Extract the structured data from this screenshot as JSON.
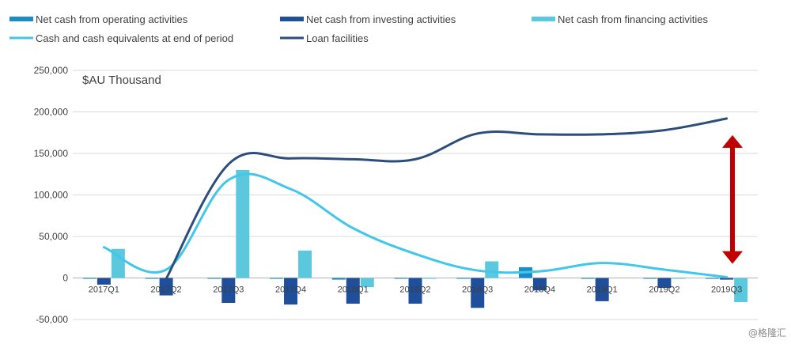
{
  "chart_data": {
    "type": "bar",
    "categories": [
      "2017Q1",
      "2017Q2",
      "2017Q3",
      "2017Q4",
      "2018Q1",
      "2018Q2",
      "2018Q3",
      "2018Q4",
      "2019Q1",
      "2019Q2",
      "2019Q3"
    ],
    "unit_label": "$AU Thousand",
    "ylim": [
      -50000,
      250000
    ],
    "yticks": [
      -50000,
      0,
      50000,
      100000,
      150000,
      200000,
      250000
    ],
    "ytick_labels": [
      "-50,000",
      "0",
      "50,000",
      "100,000",
      "150,000",
      "200,000",
      "250,000"
    ],
    "grid": true,
    "legend_position": "top",
    "bar_series": [
      {
        "name": "Net cash from operating activities",
        "color": "#1a8cc7",
        "values": [
          -1000,
          -1000,
          -1000,
          -1000,
          -2000,
          -1000,
          -1000,
          13000,
          -1000,
          -1000,
          -1000
        ]
      },
      {
        "name": "Net cash from investing activities",
        "color": "#1f4e9a",
        "values": [
          -8000,
          -21000,
          -30000,
          -32000,
          -31000,
          -31000,
          -36000,
          -15000,
          -28000,
          -12000,
          -2000
        ]
      },
      {
        "name": "Net cash from financing activities",
        "color": "#5bc8dd",
        "values": [
          35000,
          0,
          130000,
          33000,
          -11000,
          -1000,
          20000,
          0,
          0,
          -1000,
          -29000
        ]
      }
    ],
    "line_series": [
      {
        "name": "Cash and cash equivalents at end of period",
        "color": "#42c6ea",
        "values": [
          37000,
          10000,
          118000,
          107000,
          60000,
          29000,
          9000,
          8000,
          18000,
          10000,
          1000
        ]
      },
      {
        "name": "Loan facilities",
        "color": "#2d4e7c",
        "values": [
          null,
          -1000,
          137000,
          144000,
          143000,
          143000,
          174000,
          173000,
          173000,
          178000,
          192000
        ]
      }
    ],
    "annotation": {
      "type": "double-arrow",
      "color": "#c00000",
      "from_value": 172000,
      "to_value": 17000
    }
  },
  "watermark": "@格隆汇"
}
